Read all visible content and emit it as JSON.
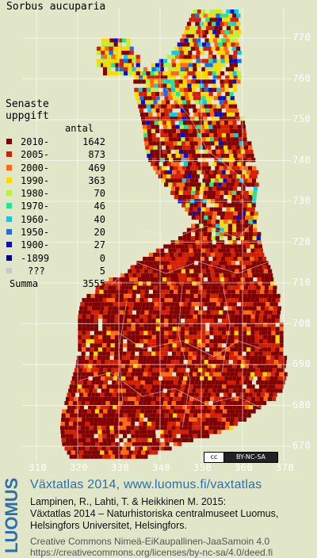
{
  "title": "Sorbus aucuparia",
  "legend": {
    "heading_line1": "Senaste",
    "heading_line2": "uppgift",
    "count_header": "antal",
    "rows": [
      {
        "label": "2010-",
        "count": "1642",
        "color": "#800000"
      },
      {
        "label": "2005-",
        "count": "873",
        "color": "#d42000"
      },
      {
        "label": "2000-",
        "count": "469",
        "color": "#ff6a10"
      },
      {
        "label": "1990-",
        "count": "363",
        "color": "#ffd800"
      },
      {
        "label": "1980-",
        "count": "70",
        "color": "#b8f040"
      },
      {
        "label": "1970-",
        "count": "46",
        "color": "#20e890"
      },
      {
        "label": "1960-",
        "count": "40",
        "color": "#10c8e8"
      },
      {
        "label": "1950-",
        "count": "20",
        "color": "#1070f0"
      },
      {
        "label": "1900-",
        "count": "27",
        "color": "#0010d0"
      },
      {
        "label": "-1899",
        "count": "0",
        "color": "#000070"
      },
      {
        "label": "???",
        "count": "5",
        "color": "#c8c8c8"
      }
    ],
    "summa_label": "Summa",
    "summa_value": "3555"
  },
  "axes": {
    "y_labels": [
      "770",
      "760",
      "750",
      "740",
      "730",
      "720",
      "710",
      "700",
      "690",
      "680",
      "670"
    ],
    "x_labels": [
      "310",
      "320",
      "330",
      "340",
      "350",
      "360",
      "370"
    ]
  },
  "license_badge": {
    "cc": "cc",
    "text": "BY-NC-SA"
  },
  "credits": {
    "logo_text": "LUOMUS",
    "atlas_line": "Växtatlas 2014, www.luomus.fi/vaxtatlas",
    "citation_1": "Lampinen, R., Lahti, T. & Heikkinen M. 2015:",
    "citation_2": "Växtatlas 2014 – Naturhistoriska centralmuseet Luomus,",
    "citation_3": "Helsingfors Universitet, Helsingfors.",
    "license_1": "Creative Commons Nimeä-EiKaupallinen-JaaSamoin 4.0",
    "license_2": "https://creativecommons.org/licenses/by-nc-sa/4.0/deed.fi"
  },
  "colors": {
    "background": "#e2e6c8",
    "grid": "#ffffff",
    "atlas_blue": "#2a6fb0"
  }
}
